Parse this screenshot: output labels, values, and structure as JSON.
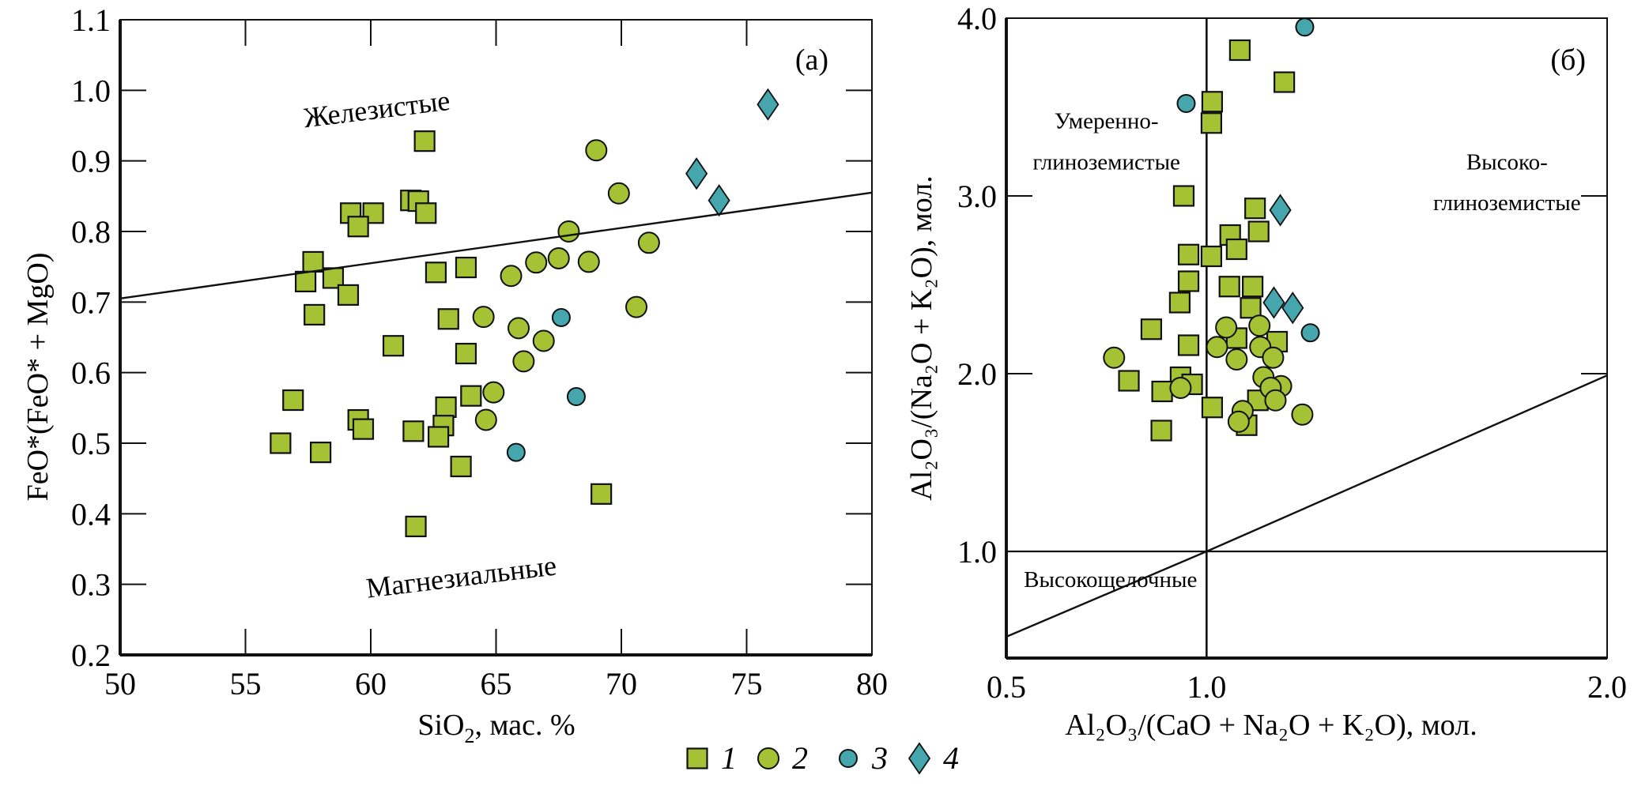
{
  "figure": {
    "legend": [
      {
        "label": "1",
        "marker": "square",
        "color": "#a5c235"
      },
      {
        "label": "2",
        "marker": "circle",
        "color": "#a5c235"
      },
      {
        "label": "3",
        "marker": "circle",
        "color": "#45a6ad"
      },
      {
        "label": "4",
        "marker": "diamond",
        "color": "#45a6ad"
      }
    ],
    "colors": {
      "green": "#a5c235",
      "teal": "#45a6ad",
      "axis": "#111111"
    }
  },
  "chart_data": [
    {
      "type": "scatter",
      "panel_label": "(a)",
      "xlabel": "SiO",
      "xlabel_sub": "2",
      "xlabel_rest": ", мас. %",
      "ylabel": "FeO*(FeO* + MgO)",
      "xlim": [
        50,
        80
      ],
      "ylim": [
        0.2,
        1.1
      ],
      "xticks": [
        50,
        55,
        60,
        65,
        70,
        75,
        80
      ],
      "xtick_labels": [
        "50",
        "55",
        "60",
        "65",
        "70",
        "75",
        "80"
      ],
      "yticks": [
        0.2,
        0.3,
        0.4,
        0.5,
        0.6,
        0.7,
        0.8,
        0.9,
        1.0,
        1.1
      ],
      "ytick_labels": [
        "0.2",
        "0.3",
        "0.4",
        "0.5",
        "0.6",
        "0.7",
        "0.8",
        "0.9",
        "1.0",
        "1.1"
      ],
      "grid": false,
      "divider_line": [
        [
          50,
          0.705
        ],
        [
          80,
          0.855
        ]
      ],
      "region_labels": [
        {
          "text": "Железистые",
          "x": 59.5,
          "y": 0.98,
          "rotate": -7
        },
        {
          "text": "Магнезиальные",
          "x": 63.0,
          "y": 0.3,
          "rotate": -7
        }
      ],
      "series": [
        {
          "name": "1",
          "marker": "square",
          "color": "#a5c235",
          "points": [
            [
              62.15,
              0.928
            ],
            [
              61.6,
              0.844
            ],
            [
              61.9,
              0.843
            ],
            [
              62.2,
              0.826
            ],
            [
              59.2,
              0.826
            ],
            [
              60.1,
              0.826
            ],
            [
              59.5,
              0.807
            ],
            [
              57.7,
              0.757
            ],
            [
              57.4,
              0.729
            ],
            [
              58.5,
              0.734
            ],
            [
              59.1,
              0.71
            ],
            [
              57.75,
              0.682
            ],
            [
              62.6,
              0.742
            ],
            [
              63.8,
              0.749
            ],
            [
              63.1,
              0.676
            ],
            [
              60.9,
              0.638
            ],
            [
              63.8,
              0.627
            ],
            [
              56.9,
              0.561
            ],
            [
              56.4,
              0.5
            ],
            [
              58.0,
              0.487
            ],
            [
              59.5,
              0.533
            ],
            [
              59.7,
              0.52
            ],
            [
              61.7,
              0.517
            ],
            [
              63.0,
              0.551
            ],
            [
              62.9,
              0.525
            ],
            [
              62.7,
              0.509
            ],
            [
              64.0,
              0.567
            ],
            [
              63.6,
              0.467
            ],
            [
              61.8,
              0.382
            ],
            [
              69.2,
              0.428
            ]
          ]
        },
        {
          "name": "2",
          "marker": "circle",
          "color": "#a5c235",
          "points": [
            [
              69.0,
              0.915
            ],
            [
              69.9,
              0.854
            ],
            [
              67.9,
              0.8
            ],
            [
              71.1,
              0.784
            ],
            [
              68.7,
              0.757
            ],
            [
              70.6,
              0.693
            ],
            [
              65.6,
              0.737
            ],
            [
              66.6,
              0.756
            ],
            [
              67.5,
              0.762
            ],
            [
              64.5,
              0.679
            ],
            [
              65.9,
              0.663
            ],
            [
              66.9,
              0.645
            ],
            [
              66.1,
              0.616
            ],
            [
              64.9,
              0.572
            ],
            [
              64.6,
              0.533
            ]
          ]
        },
        {
          "name": "3",
          "marker": "circle",
          "color": "#45a6ad",
          "points": [
            [
              67.6,
              0.678
            ],
            [
              68.2,
              0.566
            ],
            [
              65.8,
              0.487
            ]
          ]
        },
        {
          "name": "4",
          "marker": "diamond",
          "color": "#45a6ad",
          "points": [
            [
              75.85,
              0.98
            ],
            [
              73.0,
              0.882
            ],
            [
              73.9,
              0.844
            ]
          ]
        }
      ]
    },
    {
      "type": "scatter",
      "panel_label": "(б)",
      "xlabel": "Al₂O₃/(CaO + Na₂O + K₂O), мол.",
      "ylabel": "Al₂O₃/(Na₂O + K₂O), мол.",
      "xlim": [
        0.5,
        2.0
      ],
      "ylim": [
        0.4,
        4.0
      ],
      "xticks": [
        0.5,
        1.0,
        2.0
      ],
      "xtick_labels": [
        "0.5",
        "1.0",
        "2.0"
      ],
      "yticks": [
        1.0,
        2.0,
        3.0,
        4.0
      ],
      "ytick_labels": [
        "1.0",
        "2.0",
        "3.0",
        "4.0"
      ],
      "grid": false,
      "reference_lines": {
        "vertical_x": 1.0,
        "horizontal_y": 1.0,
        "diagonal": [
          [
            0.5,
            0.52
          ],
          [
            1.0,
            1.0
          ],
          [
            2.0,
            1.99
          ]
        ]
      },
      "region_labels": [
        {
          "text": "Умеренно-",
          "x": 0.75,
          "y": 3.38
        },
        {
          "text": "глиноземистые",
          "x": 0.75,
          "y": 3.15
        },
        {
          "text": "Высоко-",
          "x": 1.75,
          "y": 3.15
        },
        {
          "text": "глиноземистые",
          "x": 1.75,
          "y": 2.92
        },
        {
          "text": "Высокощелочные",
          "x": 0.76,
          "y": 0.8
        }
      ],
      "series": [
        {
          "name": "1",
          "marker": "square",
          "color": "#a5c235",
          "points": [
            [
              1.083,
              3.82
            ],
            [
              1.194,
              3.64
            ],
            [
              1.014,
              3.53
            ],
            [
              1.012,
              3.41
            ],
            [
              0.943,
              3.0
            ],
            [
              1.121,
              2.93
            ],
            [
              1.13,
              2.8
            ],
            [
              1.059,
              2.78
            ],
            [
              1.075,
              2.7
            ],
            [
              0.955,
              2.67
            ],
            [
              1.012,
              2.66
            ],
            [
              0.955,
              2.52
            ],
            [
              1.057,
              2.49
            ],
            [
              1.115,
              2.49
            ],
            [
              0.933,
              2.4
            ],
            [
              1.11,
              2.37
            ],
            [
              0.862,
              2.25
            ],
            [
              0.955,
              2.16
            ],
            [
              1.075,
              2.2
            ],
            [
              1.176,
              2.18
            ],
            [
              0.806,
              1.96
            ],
            [
              0.935,
              1.98
            ],
            [
              0.964,
              1.94
            ],
            [
              0.889,
              1.9
            ],
            [
              1.014,
              1.81
            ],
            [
              1.128,
              1.85
            ],
            [
              1.1,
              1.71
            ],
            [
              0.887,
              1.68
            ]
          ]
        },
        {
          "name": "2",
          "marker": "circle",
          "color": "#a5c235",
          "points": [
            [
              0.769,
              2.09
            ],
            [
              1.049,
              2.26
            ],
            [
              1.132,
              2.27
            ],
            [
              1.026,
              2.15
            ],
            [
              1.134,
              2.15
            ],
            [
              1.075,
              2.08
            ],
            [
              1.166,
              2.09
            ],
            [
              0.935,
              1.92
            ],
            [
              1.142,
              1.98
            ],
            [
              1.186,
              1.93
            ],
            [
              1.16,
              1.92
            ],
            [
              1.172,
              1.85
            ],
            [
              1.239,
              1.77
            ],
            [
              1.09,
              1.79
            ],
            [
              1.08,
              1.73
            ]
          ]
        },
        {
          "name": "3",
          "marker": "circle",
          "color": "#45a6ad",
          "points": [
            [
              1.245,
              3.95
            ],
            [
              0.949,
              3.52
            ],
            [
              1.259,
              2.23
            ]
          ]
        },
        {
          "name": "4",
          "marker": "diamond",
          "color": "#45a6ad",
          "points": [
            [
              1.184,
              2.92
            ],
            [
              1.168,
              2.4
            ],
            [
              1.215,
              2.37
            ]
          ]
        }
      ]
    }
  ]
}
